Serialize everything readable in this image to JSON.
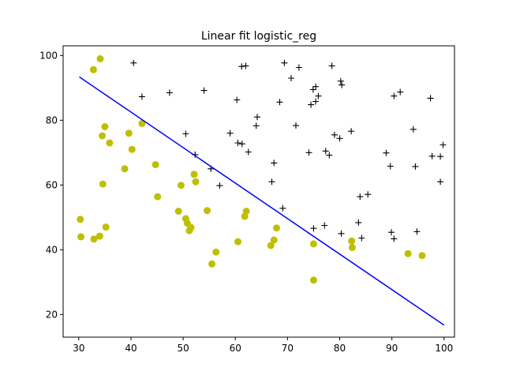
{
  "chart_data": {
    "type": "scatter",
    "title": "Linear fit logistic_reg",
    "xlabel": "",
    "ylabel": "",
    "xlim": [
      27,
      102
    ],
    "ylim": [
      13,
      103
    ],
    "xticks": [
      30,
      40,
      50,
      60,
      70,
      80,
      90,
      100
    ],
    "yticks": [
      20,
      40,
      60,
      80,
      100
    ],
    "grid": false,
    "legend": "none",
    "series": [
      {
        "marker": "circle",
        "color": "#bfbf00",
        "points": [
          [
            34.1,
            99.0
          ],
          [
            32.8,
            95.6
          ],
          [
            35.0,
            78.0
          ],
          [
            34.5,
            75.2
          ],
          [
            35.9,
            73.0
          ],
          [
            42.1,
            79.0
          ],
          [
            39.6,
            76.0
          ],
          [
            40.2,
            71.0
          ],
          [
            38.8,
            65.0
          ],
          [
            34.6,
            60.3
          ],
          [
            44.7,
            66.3
          ],
          [
            45.1,
            56.4
          ],
          [
            49.6,
            59.9
          ],
          [
            52.1,
            63.3
          ],
          [
            52.4,
            61.0
          ],
          [
            30.3,
            49.4
          ],
          [
            30.4,
            44.0
          ],
          [
            32.9,
            43.3
          ],
          [
            34.0,
            44.2
          ],
          [
            35.2,
            47.0
          ],
          [
            49.1,
            51.9
          ],
          [
            50.5,
            49.6
          ],
          [
            50.8,
            48.2
          ],
          [
            51.5,
            46.9
          ],
          [
            51.2,
            45.9
          ],
          [
            54.6,
            52.1
          ],
          [
            56.3,
            39.3
          ],
          [
            55.5,
            35.6
          ],
          [
            60.5,
            42.5
          ],
          [
            61.8,
            50.3
          ],
          [
            62.1,
            51.9
          ],
          [
            66.8,
            41.3
          ],
          [
            67.4,
            43.0
          ],
          [
            67.9,
            46.7
          ],
          [
            75.0,
            41.8
          ],
          [
            75.0,
            30.6
          ],
          [
            82.3,
            42.7
          ],
          [
            82.4,
            40.7
          ],
          [
            93.1,
            38.8
          ],
          [
            95.8,
            38.2
          ]
        ]
      },
      {
        "marker": "plus",
        "color": "#000000",
        "points": [
          [
            40.5,
            97.7
          ],
          [
            42.1,
            87.3
          ],
          [
            47.4,
            88.5
          ],
          [
            50.5,
            75.8
          ],
          [
            52.3,
            69.4
          ],
          [
            54.0,
            89.2
          ],
          [
            55.3,
            65.0
          ],
          [
            57.0,
            59.8
          ],
          [
            59.0,
            76.0
          ],
          [
            60.3,
            86.3
          ],
          [
            60.5,
            73.0
          ],
          [
            61.3,
            72.7
          ],
          [
            61.2,
            96.6
          ],
          [
            62.0,
            96.8
          ],
          [
            62.5,
            70.2
          ],
          [
            64.0,
            78.3
          ],
          [
            64.2,
            81.0
          ],
          [
            67.0,
            61.0
          ],
          [
            67.4,
            66.8
          ],
          [
            68.5,
            85.6
          ],
          [
            69.1,
            52.8
          ],
          [
            69.4,
            97.7
          ],
          [
            70.7,
            93.0
          ],
          [
            71.6,
            78.4
          ],
          [
            72.2,
            96.3
          ],
          [
            74.1,
            70.0
          ],
          [
            74.5,
            84.8
          ],
          [
            74.9,
            89.5
          ],
          [
            75.4,
            90.4
          ],
          [
            75.4,
            85.8
          ],
          [
            75.9,
            87.5
          ],
          [
            75.0,
            46.6
          ],
          [
            77.3,
            70.5
          ],
          [
            78.0,
            69.2
          ],
          [
            78.5,
            96.8
          ],
          [
            77.1,
            47.5
          ],
          [
            79.0,
            75.5
          ],
          [
            80.0,
            74.4
          ],
          [
            80.2,
            92.1
          ],
          [
            80.4,
            90.9
          ],
          [
            80.3,
            45.0
          ],
          [
            82.2,
            76.6
          ],
          [
            83.6,
            48.4
          ],
          [
            83.9,
            56.4
          ],
          [
            84.2,
            43.6
          ],
          [
            85.4,
            57.1
          ],
          [
            88.9,
            69.9
          ],
          [
            89.7,
            65.8
          ],
          [
            89.9,
            45.4
          ],
          [
            90.4,
            43.4
          ],
          [
            90.4,
            87.5
          ],
          [
            91.6,
            88.7
          ],
          [
            94.1,
            77.2
          ],
          [
            94.5,
            65.7
          ],
          [
            94.8,
            45.6
          ],
          [
            97.4,
            86.8
          ],
          [
            97.7,
            68.9
          ],
          [
            99.3,
            68.8
          ],
          [
            99.3,
            61.0
          ],
          [
            99.8,
            72.4
          ]
        ]
      },
      {
        "type": "line",
        "color": "#0000ff",
        "points": [
          [
            30.1,
            93.4
          ],
          [
            100.0,
            16.7
          ]
        ]
      }
    ]
  }
}
